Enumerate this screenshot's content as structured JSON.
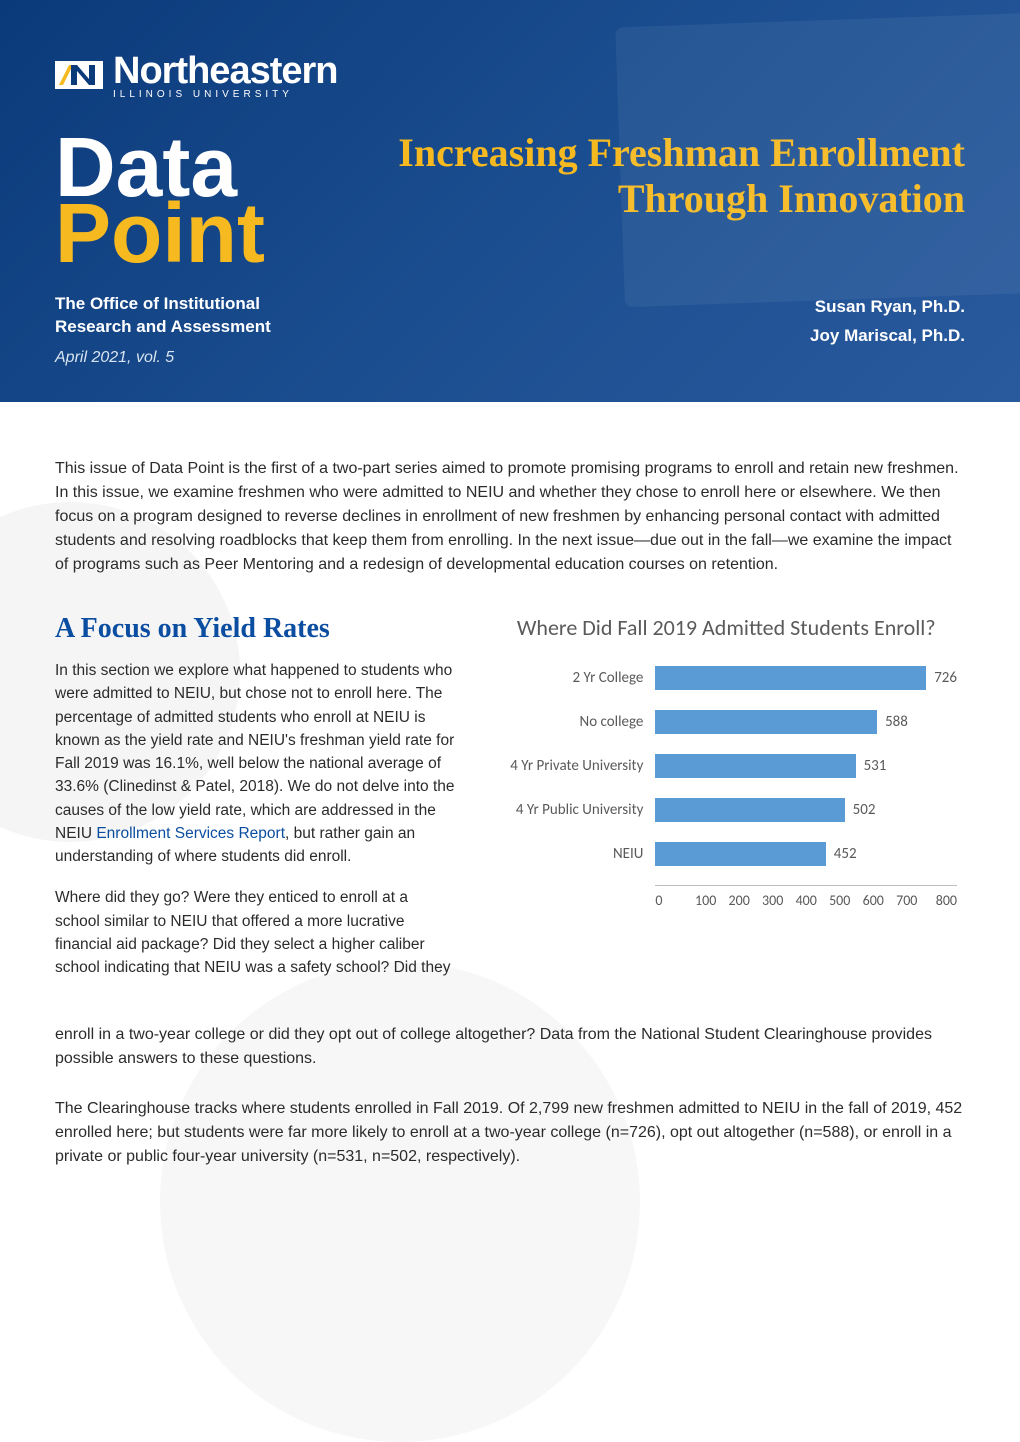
{
  "header": {
    "logo": {
      "main": "Northeastern",
      "sub": "ILLINOIS  UNIVERSITY"
    },
    "brand_line1": "Data",
    "brand_line2": "Point",
    "issue_title": "Increasing Freshman Enrollment Through Innovation",
    "office_label": "The Office of Institutional Research and Assessment",
    "authors": {
      "a1": "Susan Ryan, Ph.D.",
      "a2": "Joy Mariscal, Ph.D."
    },
    "date_vol": "April 2021, vol. 5",
    "colors": {
      "bg_gradient_from": "#0b3a7a",
      "bg_gradient_to": "#2a5a9e",
      "accent_gold": "#f6b920",
      "text_white": "#ffffff"
    }
  },
  "intro": "This issue of Data Point is the first of a two-part series aimed to promote promising programs to enroll and retain new freshmen. In this issue, we examine freshmen who were admitted to NEIU and whether they chose to enroll here or elsewhere. We then focus on a program designed to reverse declines in enrollment of new freshmen by enhancing personal contact with admitted students and resolving roadblocks that keep them from enrolling. In the next issue—due out in the fall—we examine the impact of programs such as Peer Mentoring and a redesign of developmental education courses on retention.",
  "section_title": "A Focus on Yield Rates",
  "left_para_1a": "In this section we explore what happened to students who were admitted to NEIU, but chose not to enroll here. The percentage of admitted students who enroll at NEIU is known as the yield rate and NEIU's freshman yield rate for Fall 2019 was 16.1%, well below the national average of 33.6% (Clinedinst & Patel, 2018). We do not delve into the causes of the low yield rate, which are addressed in the NEIU ",
  "left_link_text": "Enrollment Services Report",
  "left_para_1b": ", but rather gain an understanding of where students did enroll.",
  "left_para_2_intro": "Where did they go? Were they enticed to enroll at a school similar to NEIU that offered a more lucrative financial aid package? Did they select a higher caliber school indicating that NEIU was a safety school? Did they ",
  "merged_para_continuation": "enroll in a two-year college or did they opt out of college altogether? Data from the National Student Clearinghouse provides possible answers to these questions.",
  "bottom_para": "The Clearinghouse tracks where students enrolled in Fall 2019. Of 2,799 new freshmen admitted to NEIU in the fall of 2019, 452 enrolled here; but students were far more likely to enroll at a two-year college (n=726), opt out altogether (n=588), or enroll in a private or public four-year university (n=531, n=502, respectively).",
  "chart": {
    "type": "bar",
    "title": "Where Did Fall 2019 Admitted Students Enroll?",
    "categories": [
      "2 Yr College",
      "No college",
      "4 Yr Private University",
      "4 Yr Public  University",
      "NEIU"
    ],
    "values": [
      726,
      588,
      531,
      502,
      452
    ],
    "bar_color": "#5b9bd5",
    "label_color": "#5a5a5a",
    "axis_color": "#bfbfbf",
    "background_color": "#ffffff",
    "xmax": 800,
    "xtick_step": 100,
    "label_fontsize": 15,
    "title_fontsize": 22,
    "xticks": [
      "0",
      "100",
      "200",
      "300",
      "400",
      "500",
      "600",
      "700",
      "800"
    ]
  }
}
